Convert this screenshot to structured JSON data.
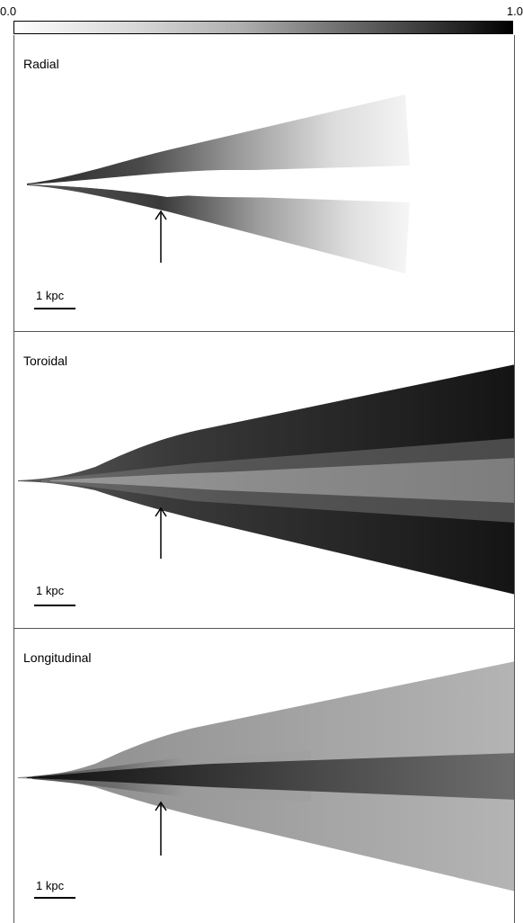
{
  "colorbar": {
    "min_label": "0.0",
    "max_label": "1.0",
    "gradient": [
      "#ffffff",
      "#000000"
    ]
  },
  "panels": [
    {
      "title": "Radial",
      "scale_label": "1 kpc"
    },
    {
      "title": "Toroidal",
      "scale_label": "1 kpc"
    },
    {
      "title": "Longitudinal",
      "scale_label": "1 kpc"
    }
  ]
}
